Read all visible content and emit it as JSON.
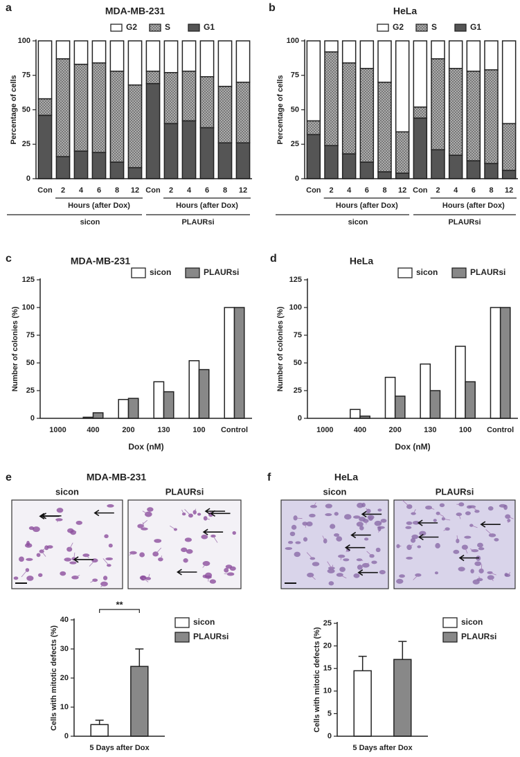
{
  "chart_data": [
    {
      "type": "bar",
      "panel": "a",
      "title": "MDA-MB-231",
      "stacked": true,
      "legend": "top",
      "ylabel": "Percentage of cells",
      "categories": [
        "Con",
        "2",
        "4",
        "6",
        "8",
        "12",
        "Con",
        "2",
        "4",
        "6",
        "8",
        "12"
      ],
      "group_sublabel": "Hours (after Dox)",
      "groups": [
        "sicon",
        "PLAURsi"
      ],
      "series": [
        {
          "name": "G1",
          "color": "#555555",
          "values": [
            46,
            16,
            20,
            19,
            12,
            8,
            69,
            40,
            42,
            37,
            26,
            26
          ]
        },
        {
          "name": "S",
          "color": "#b4b4b4",
          "hatch": true,
          "values": [
            12,
            71,
            63,
            65,
            66,
            60,
            9,
            37,
            36,
            37,
            41,
            44
          ]
        },
        {
          "name": "G2",
          "color": "#ffffff",
          "values": [
            42,
            13,
            17,
            16,
            22,
            32,
            22,
            23,
            22,
            26,
            33,
            30
          ]
        }
      ],
      "ylim": [
        0,
        100
      ],
      "yticks": [
        0,
        25,
        50,
        75,
        100
      ]
    },
    {
      "type": "bar",
      "panel": "b",
      "title": "HeLa",
      "stacked": true,
      "legend": "top",
      "ylabel": "Percentage of cells",
      "categories": [
        "Con",
        "2",
        "4",
        "6",
        "8",
        "12",
        "Con",
        "2",
        "4",
        "6",
        "8",
        "12"
      ],
      "group_sublabel": "Hours (after Dox)",
      "groups": [
        "sicon",
        "PLAURsi"
      ],
      "series": [
        {
          "name": "G1",
          "color": "#555555",
          "values": [
            32,
            24,
            18,
            12,
            5,
            4,
            44,
            21,
            17,
            13,
            11,
            6
          ]
        },
        {
          "name": "S",
          "color": "#b4b4b4",
          "hatch": true,
          "values": [
            10,
            68,
            66,
            68,
            65,
            30,
            8,
            66,
            63,
            65,
            68,
            34
          ]
        },
        {
          "name": "G2",
          "color": "#ffffff",
          "values": [
            58,
            8,
            16,
            20,
            30,
            66,
            48,
            13,
            20,
            22,
            21,
            60
          ]
        }
      ],
      "ylim": [
        0,
        100
      ],
      "yticks": [
        0,
        25,
        50,
        75,
        100
      ]
    },
    {
      "type": "bar",
      "panel": "c",
      "title": "MDA-MB-231",
      "legend": "upper right",
      "ylabel": "Number of colonies (%)",
      "xlabel": "Dox  (nM)",
      "categories": [
        "1000",
        "400",
        "200",
        "130",
        "100",
        "Control"
      ],
      "series": [
        {
          "name": "sicon",
          "color": "#ffffff",
          "values": [
            0,
            1,
            17,
            33,
            52,
            100
          ]
        },
        {
          "name": "PLAURsi",
          "color": "#888888",
          "values": [
            0,
            5,
            18,
            24,
            44,
            100
          ]
        }
      ],
      "ylim": [
        0,
        125
      ],
      "yticks": [
        0,
        25,
        50,
        75,
        100,
        125
      ]
    },
    {
      "type": "bar",
      "panel": "d",
      "title": "HeLa",
      "legend": "upper right",
      "ylabel": "Number of colonies (%)",
      "xlabel": "Dox  (nM)",
      "categories": [
        "1000",
        "400",
        "200",
        "130",
        "100",
        "Control"
      ],
      "series": [
        {
          "name": "sicon",
          "color": "#ffffff",
          "values": [
            0,
            8,
            37,
            49,
            65,
            100
          ]
        },
        {
          "name": "PLAURsi",
          "color": "#888888",
          "values": [
            0,
            2,
            20,
            25,
            33,
            100
          ]
        }
      ],
      "ylim": [
        0,
        125
      ],
      "yticks": [
        0,
        25,
        50,
        75,
        100,
        125
      ]
    },
    {
      "type": "bar",
      "panel": "e",
      "title": "MDA-MB-231",
      "legend": "right",
      "ylabel": "Cells with mitotic defects (%)",
      "images": [
        "sicon",
        "PLAURsi"
      ],
      "annotation": "**",
      "categories": [
        "5 Days after Dox"
      ],
      "series": [
        {
          "name": "sicon",
          "color": "#ffffff",
          "values": [
            4
          ],
          "errors": [
            1.5
          ]
        },
        {
          "name": "PLAURsi",
          "color": "#888888",
          "values": [
            24
          ],
          "errors": [
            6
          ]
        }
      ],
      "ylim": [
        0,
        40
      ],
      "yticks": [
        0,
        10,
        20,
        30,
        40
      ]
    },
    {
      "type": "bar",
      "panel": "f",
      "title": "HeLa",
      "legend": "right",
      "ylabel": "Cells with mitotic defects (%)",
      "images": [
        "sicon",
        "PLAURsi"
      ],
      "categories": [
        "5 Days after Dox"
      ],
      "series": [
        {
          "name": "sicon",
          "color": "#ffffff",
          "values": [
            14.5
          ],
          "errors": [
            3.2
          ]
        },
        {
          "name": "PLAURsi",
          "color": "#888888",
          "values": [
            17
          ],
          "errors": [
            4
          ]
        }
      ],
      "ylim": [
        0,
        25
      ],
      "yticks": [
        0,
        5,
        10,
        15,
        20,
        25
      ]
    }
  ]
}
